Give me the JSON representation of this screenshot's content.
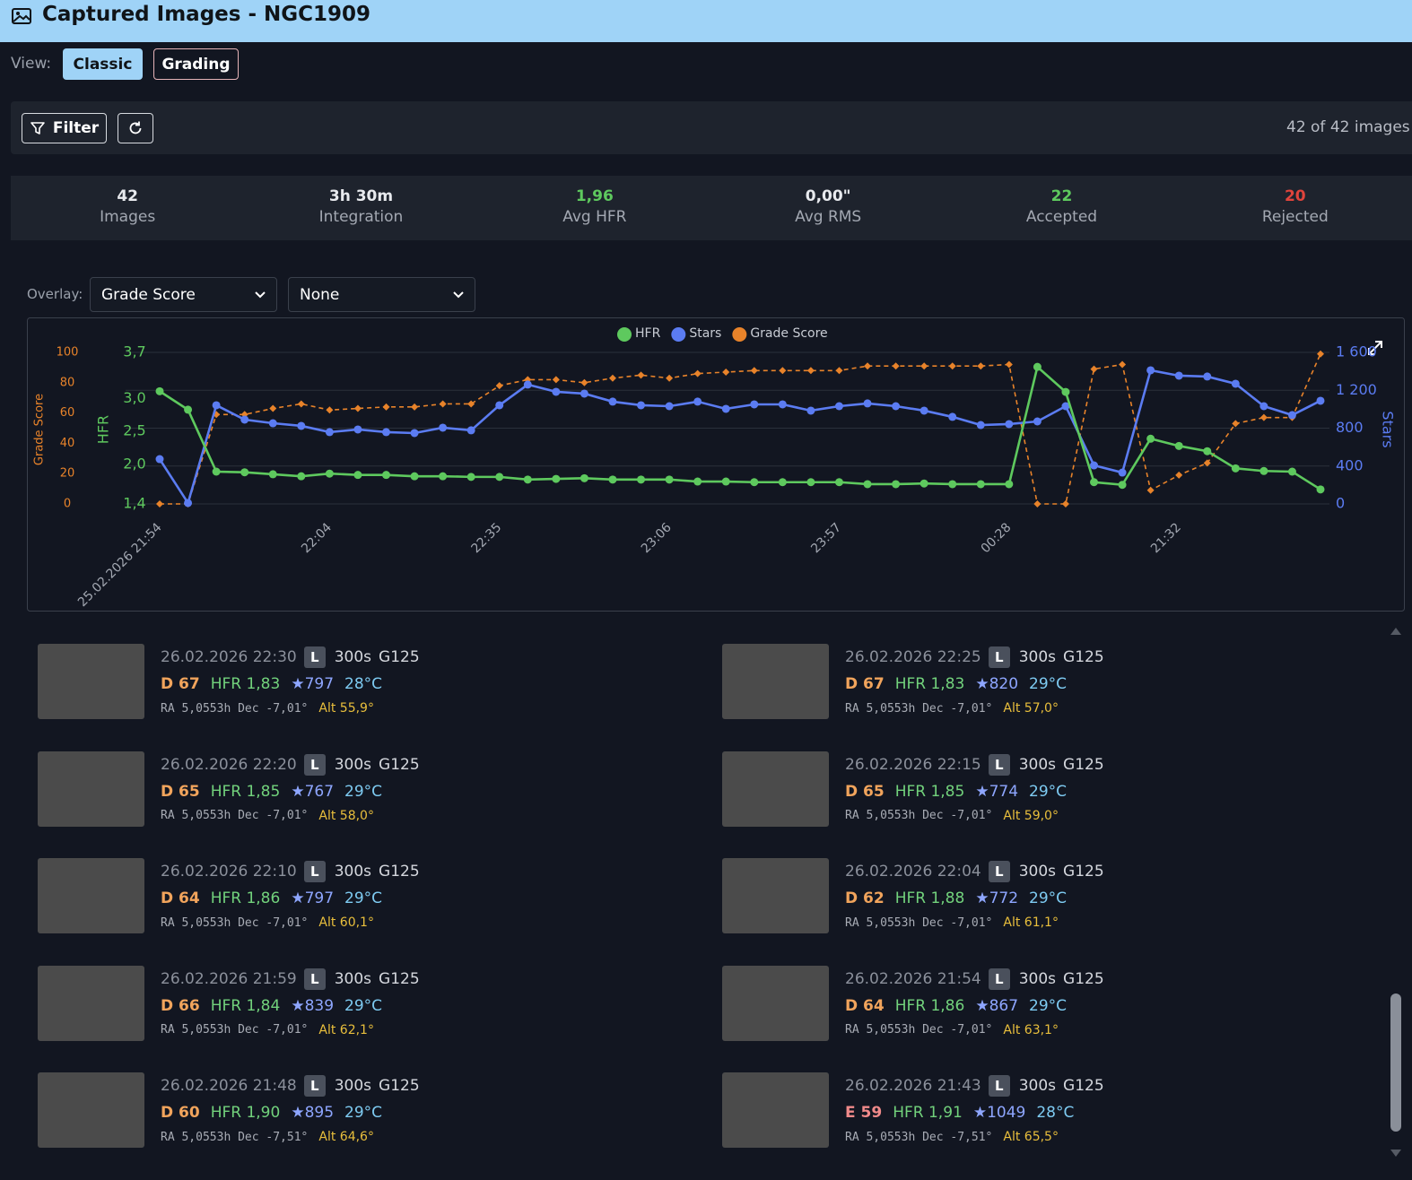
{
  "header": {
    "title": "Captured Images - NGC1909"
  },
  "view": {
    "label": "View:",
    "options": [
      "Classic",
      "Grading"
    ]
  },
  "toolbar": {
    "filter": "Filter",
    "count": "42 of 42 images"
  },
  "stats": [
    {
      "value": "42",
      "label": "Images"
    },
    {
      "value": "3h 30m",
      "label": "Integration"
    },
    {
      "value": "1,96",
      "label": "Avg HFR"
    },
    {
      "value": "0,00\"",
      "label": "Avg RMS"
    },
    {
      "value": "22",
      "label": "Accepted"
    },
    {
      "value": "20",
      "label": "Rejected"
    }
  ],
  "overlay": {
    "label": "Overlay:",
    "primary": "Grade Score",
    "secondary": "None"
  },
  "chart_data": {
    "type": "line",
    "categories": [
      "25.02.2026 21:54",
      null,
      null,
      null,
      null,
      null,
      "22:04",
      null,
      null,
      null,
      null,
      null,
      "22:35",
      null,
      null,
      null,
      null,
      null,
      "23:06",
      null,
      null,
      null,
      null,
      null,
      "23:57",
      null,
      null,
      null,
      null,
      null,
      "00:28",
      null,
      null,
      null,
      null,
      null,
      "21:32",
      null,
      null,
      null,
      null,
      null
    ],
    "series": [
      {
        "name": "HFR",
        "color": "#5ec95e",
        "axis": "y",
        "marker": "circle",
        "values": [
          3.11,
          2.83,
          1.89,
          1.88,
          1.85,
          1.82,
          1.86,
          1.84,
          1.84,
          1.82,
          1.82,
          1.81,
          1.81,
          1.77,
          1.78,
          1.79,
          1.77,
          1.77,
          1.77,
          1.74,
          1.74,
          1.73,
          1.73,
          1.73,
          1.73,
          1.7,
          1.7,
          1.71,
          1.7,
          1.7,
          1.7,
          3.48,
          3.1,
          1.73,
          1.69,
          2.39,
          2.28,
          2.2,
          1.94,
          1.9,
          1.89,
          1.62
        ]
      },
      {
        "name": "Stars",
        "color": "#5b7cf2",
        "axis": "y2",
        "marker": "circle",
        "values": [
          473,
          10,
          1042,
          890,
          852,
          824,
          758,
          786,
          758,
          748,
          805,
          777,
          1042,
          1260,
          1184,
          1165,
          1080,
          1042,
          1032,
          1080,
          1004,
          1051,
          1051,
          985,
          1032,
          1061,
          1032,
          985,
          919,
          833,
          843,
          871,
          1032,
          407,
          331,
          1411,
          1354,
          1345,
          1269,
          1032,
          938,
          1089
        ]
      },
      {
        "name": "Grade Score",
        "color": "#e8832a",
        "axis": "y3",
        "marker": "diamond",
        "dashed": true,
        "values": [
          0,
          0,
          59,
          59,
          63,
          66,
          62,
          63,
          64,
          64,
          66,
          66,
          78,
          82,
          82,
          80,
          83,
          85,
          83,
          86,
          87,
          88,
          88,
          88,
          88,
          91,
          91,
          91,
          91,
          91,
          92,
          0,
          0,
          89,
          92,
          9,
          19,
          27,
          53,
          57,
          57,
          99
        ]
      }
    ],
    "ylabel": "HFR",
    "ylim": [
      1.4,
      3.7
    ],
    "yticks": [
      {
        "value": 1.4,
        "label": "1,4"
      },
      {
        "value": 2,
        "label": "2,0"
      },
      {
        "value": 2.5,
        "label": "2,5"
      },
      {
        "value": 3,
        "label": "3,0"
      },
      {
        "value": 3.7,
        "label": "3,7"
      }
    ],
    "y2label": "Stars",
    "y2lim": [
      0,
      1600
    ],
    "y2ticks": [
      0,
      400,
      800,
      {
        "value": 1200,
        "label": "1 200"
      },
      {
        "value": 1600,
        "label": "1 600"
      }
    ],
    "y3label": "Grade Score",
    "y3lim": [
      0,
      100
    ],
    "y3ticks": [
      0,
      20,
      40,
      60,
      80,
      100
    ],
    "grid": true,
    "legend": "top"
  },
  "images": [
    {
      "time": "26.02.2026 22:30",
      "filter": "L",
      "exposure": "300s",
      "gain": "G125",
      "grade": "D 67",
      "hfr": "HFR 1,83",
      "stars": "★797",
      "temp": "28°C",
      "coords": "RA 5,0553h Dec -7,01°",
      "alt": "Alt 55,9°"
    },
    {
      "time": "26.02.2026 22:25",
      "filter": "L",
      "exposure": "300s",
      "gain": "G125",
      "grade": "D 67",
      "hfr": "HFR 1,83",
      "stars": "★820",
      "temp": "29°C",
      "coords": "RA 5,0553h Dec -7,01°",
      "alt": "Alt 57,0°"
    },
    {
      "time": "26.02.2026 22:20",
      "filter": "L",
      "exposure": "300s",
      "gain": "G125",
      "grade": "D 65",
      "hfr": "HFR 1,85",
      "stars": "★767",
      "temp": "29°C",
      "coords": "RA 5,0553h Dec -7,01°",
      "alt": "Alt 58,0°"
    },
    {
      "time": "26.02.2026 22:15",
      "filter": "L",
      "exposure": "300s",
      "gain": "G125",
      "grade": "D 65",
      "hfr": "HFR 1,85",
      "stars": "★774",
      "temp": "29°C",
      "coords": "RA 5,0553h Dec -7,01°",
      "alt": "Alt 59,0°"
    },
    {
      "time": "26.02.2026 22:10",
      "filter": "L",
      "exposure": "300s",
      "gain": "G125",
      "grade": "D 64",
      "hfr": "HFR 1,86",
      "stars": "★797",
      "temp": "29°C",
      "coords": "RA 5,0553h Dec -7,01°",
      "alt": "Alt 60,1°"
    },
    {
      "time": "26.02.2026 22:04",
      "filter": "L",
      "exposure": "300s",
      "gain": "G125",
      "grade": "D 62",
      "hfr": "HFR 1,88",
      "stars": "★772",
      "temp": "29°C",
      "coords": "RA 5,0553h Dec -7,01°",
      "alt": "Alt 61,1°"
    },
    {
      "time": "26.02.2026 21:59",
      "filter": "L",
      "exposure": "300s",
      "gain": "G125",
      "grade": "D 66",
      "hfr": "HFR 1,84",
      "stars": "★839",
      "temp": "29°C",
      "coords": "RA 5,0553h Dec -7,01°",
      "alt": "Alt 62,1°"
    },
    {
      "time": "26.02.2026 21:54",
      "filter": "L",
      "exposure": "300s",
      "gain": "G125",
      "grade": "D 64",
      "hfr": "HFR 1,86",
      "stars": "★867",
      "temp": "29°C",
      "coords": "RA 5,0553h Dec -7,01°",
      "alt": "Alt 63,1°"
    },
    {
      "time": "26.02.2026 21:48",
      "filter": "L",
      "exposure": "300s",
      "gain": "G125",
      "grade": "D 60",
      "hfr": "HFR 1,90",
      "stars": "★895",
      "temp": "29°C",
      "coords": "RA 5,0553h Dec -7,51°",
      "alt": "Alt 64,6°"
    },
    {
      "time": "26.02.2026 21:43",
      "filter": "L",
      "exposure": "300s",
      "gain": "G125",
      "grade": "E 59",
      "hfr": "HFR 1,91",
      "stars": "★1049",
      "temp": "28°C",
      "coords": "RA 5,0553h Dec -7,51°",
      "alt": "Alt 65,5°"
    }
  ]
}
